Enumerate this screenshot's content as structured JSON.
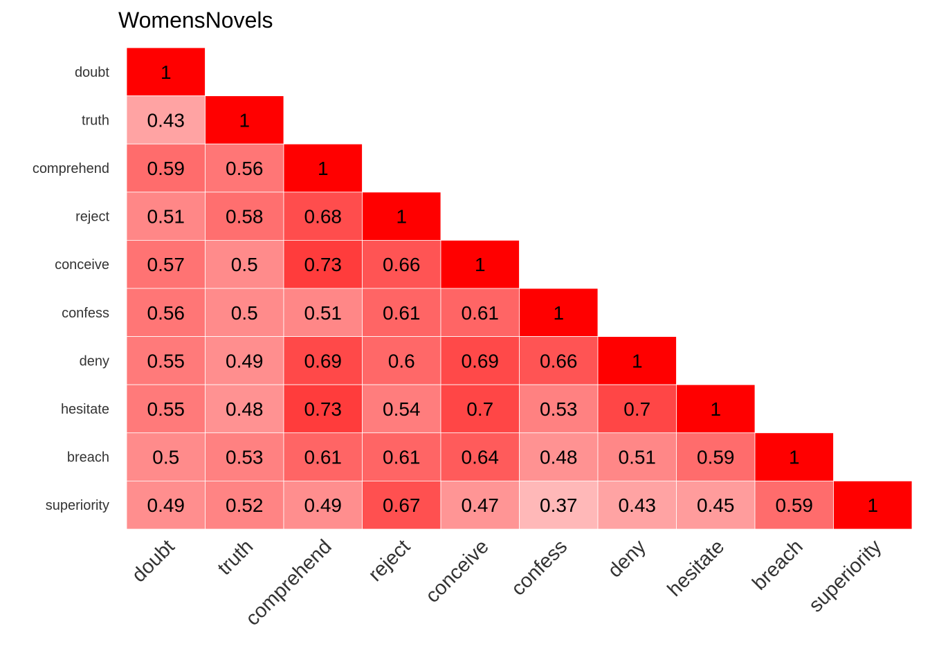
{
  "chart_data": {
    "type": "heatmap",
    "title": "WomensNovels",
    "variables": [
      "doubt",
      "truth",
      "comprehend",
      "reject",
      "conceive",
      "confess",
      "deny",
      "hesitate",
      "breach",
      "superiority"
    ],
    "lower_triangle": [
      [
        1
      ],
      [
        0.43,
        1
      ],
      [
        0.59,
        0.56,
        1
      ],
      [
        0.51,
        0.58,
        0.68,
        1
      ],
      [
        0.57,
        0.5,
        0.73,
        0.66,
        1
      ],
      [
        0.56,
        0.5,
        0.51,
        0.61,
        0.61,
        1
      ],
      [
        0.55,
        0.49,
        0.69,
        0.6,
        0.69,
        0.66,
        1
      ],
      [
        0.55,
        0.48,
        0.73,
        0.54,
        0.7,
        0.53,
        0.7,
        1
      ],
      [
        0.5,
        0.53,
        0.61,
        0.61,
        0.64,
        0.48,
        0.51,
        0.59,
        1
      ],
      [
        0.49,
        0.52,
        0.49,
        0.67,
        0.47,
        0.37,
        0.43,
        0.45,
        0.59,
        1
      ]
    ],
    "color_scale": {
      "low": "#ffffff",
      "high": "#ff0000"
    },
    "grid": false,
    "legend": "none"
  }
}
